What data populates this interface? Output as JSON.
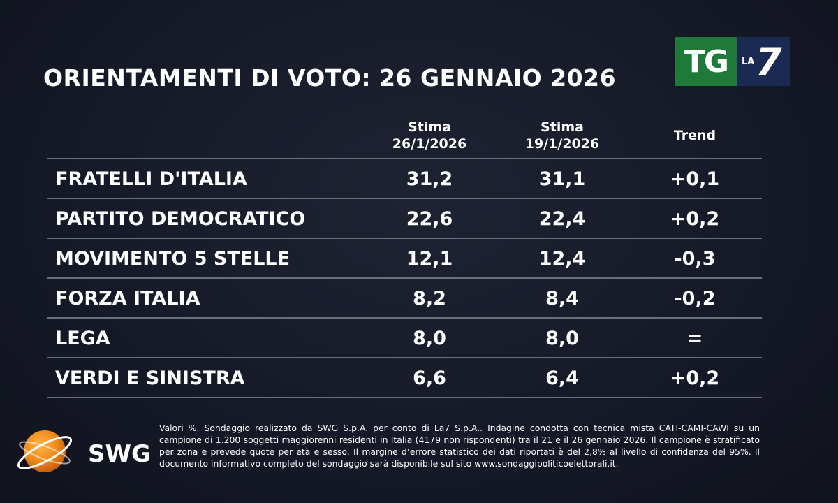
{
  "title": "ORIENTAMENTI DI VOTO: 26 GENNAIO 2026",
  "logo": {
    "tg": "TG",
    "la": "LA",
    "seven": "7"
  },
  "headers": {
    "col_a_line1": "Stima",
    "col_a_line2": "26/1/2026",
    "col_b_line1": "Stima",
    "col_b_line2": "19/1/2026",
    "col_c": "Trend"
  },
  "chart_data": {
    "type": "table",
    "columns": [
      "Stima 26/1/2026",
      "Stima 19/1/2026",
      "Trend"
    ],
    "rows": [
      {
        "party": "FRATELLI D'ITALIA",
        "stima_26": "31,2",
        "stima_19": "31,1",
        "trend": "+0,1"
      },
      {
        "party": "PARTITO DEMOCRATICO",
        "stima_26": "22,6",
        "stima_19": "22,4",
        "trend": "+0,2"
      },
      {
        "party": "MOVIMENTO 5 STELLE",
        "stima_26": "12,1",
        "stima_19": "12,4",
        "trend": "-0,3"
      },
      {
        "party": "FORZA ITALIA",
        "stima_26": "8,2",
        "stima_19": "8,4",
        "trend": "-0,2"
      },
      {
        "party": "LEGA",
        "stima_26": "8,0",
        "stima_19": "8,0",
        "trend": "="
      },
      {
        "party": "VERDI E SINISTRA",
        "stima_26": "6,6",
        "stima_19": "6,4",
        "trend": "+0,2"
      }
    ]
  },
  "swg": {
    "label": "SWG"
  },
  "footnote": "Valori %. Sondaggio realizzato da SWG S.p.A. per conto di La7 S.p.A.. Indagine condotta con tecnica mista CATI-CAMI-CAWI su un campione di 1.200 soggetti maggiorenni residenti in Italia (4179 non rispondenti) tra il 21 e il 26 gennaio 2026. Il campione è stratificato per zona e prevede quote per età e sesso. Il margine d’errore statistico dei dati riportati è del 2,8% al livello di confidenza del 95%. Il documento informativo completo del sondaggio sarà disponibile sul sito www.sondaggipoliticoelettorali.it.",
  "colors": {
    "background": "#161a28",
    "divider": "#6b6f7a",
    "tg_green": "#1f7a3a",
    "la7_blue": "#1b2a52",
    "swg_orange": "#f08a1c"
  }
}
